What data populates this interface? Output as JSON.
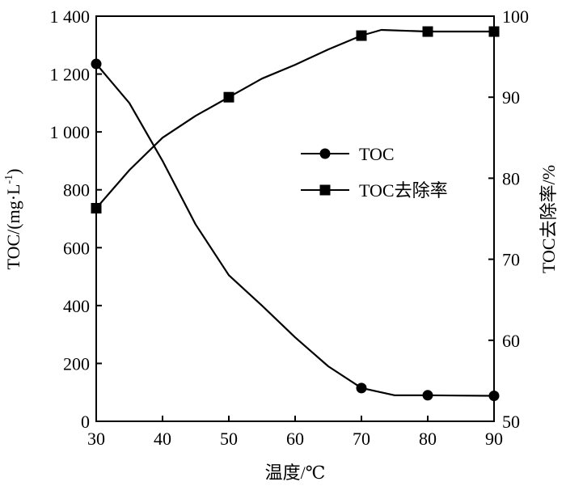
{
  "chart_data": {
    "type": "line",
    "xlabel": "温度/℃",
    "ylabel_left": "TOC/(mg·L",
    "ylabel_left_sup": "-1",
    "ylabel_left_close": ")",
    "ylabel_right": "TOC去除率/%",
    "xlim": [
      30,
      90
    ],
    "ylim_left": [
      0,
      1400
    ],
    "ylim_right": [
      50,
      100
    ],
    "x_ticks": [
      30,
      40,
      50,
      60,
      70,
      80,
      90
    ],
    "x_tick_labels": [
      "30",
      "40",
      "50",
      "60",
      "70",
      "80",
      "90"
    ],
    "y_left_ticks": [
      0,
      200,
      400,
      600,
      800,
      1000,
      1200,
      1400
    ],
    "y_left_tick_labels": [
      "0",
      "200",
      "400",
      "600",
      "800",
      "1 000",
      "1 200",
      "1 400"
    ],
    "y_right_ticks": [
      50,
      60,
      70,
      80,
      90,
      100
    ],
    "y_right_tick_labels": [
      "50",
      "60",
      "70",
      "80",
      "90",
      "100"
    ],
    "legend_position": "center-right",
    "series": [
      {
        "name": "TOC",
        "axis": "left",
        "marker": "circle",
        "color": "#000000",
        "x": [
          30,
          70,
          80,
          90
        ],
        "y": [
          1235,
          115,
          90,
          88
        ],
        "curve": [
          [
            30,
            1235
          ],
          [
            35,
            1100
          ],
          [
            40,
            900
          ],
          [
            45,
            680
          ],
          [
            50,
            505
          ],
          [
            55,
            400
          ],
          [
            60,
            290
          ],
          [
            65,
            190
          ],
          [
            70,
            115
          ],
          [
            75,
            90
          ],
          [
            80,
            90
          ],
          [
            85,
            89
          ],
          [
            90,
            88
          ]
        ]
      },
      {
        "name": "TOC去除率",
        "axis": "right",
        "marker": "square",
        "color": "#000000",
        "x": [
          30,
          50,
          70,
          80,
          90
        ],
        "y": [
          76.3,
          90.0,
          97.6,
          98.1,
          98.1
        ],
        "curve": [
          [
            30,
            76.3
          ],
          [
            35,
            81.0
          ],
          [
            40,
            85.0
          ],
          [
            45,
            87.7
          ],
          [
            50,
            90.0
          ],
          [
            55,
            92.3
          ],
          [
            60,
            94.0
          ],
          [
            65,
            95.9
          ],
          [
            70,
            97.6
          ],
          [
            73,
            98.3
          ],
          [
            80,
            98.1
          ],
          [
            85,
            98.1
          ],
          [
            90,
            98.1
          ]
        ]
      }
    ]
  }
}
